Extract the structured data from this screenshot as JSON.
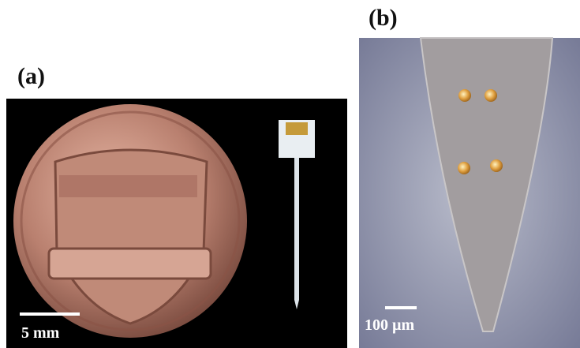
{
  "panels": [
    {
      "label": "(a)",
      "scale_bar": "5 mm"
    },
    {
      "label": "(b)",
      "scale_bar": "100 µm"
    }
  ]
}
